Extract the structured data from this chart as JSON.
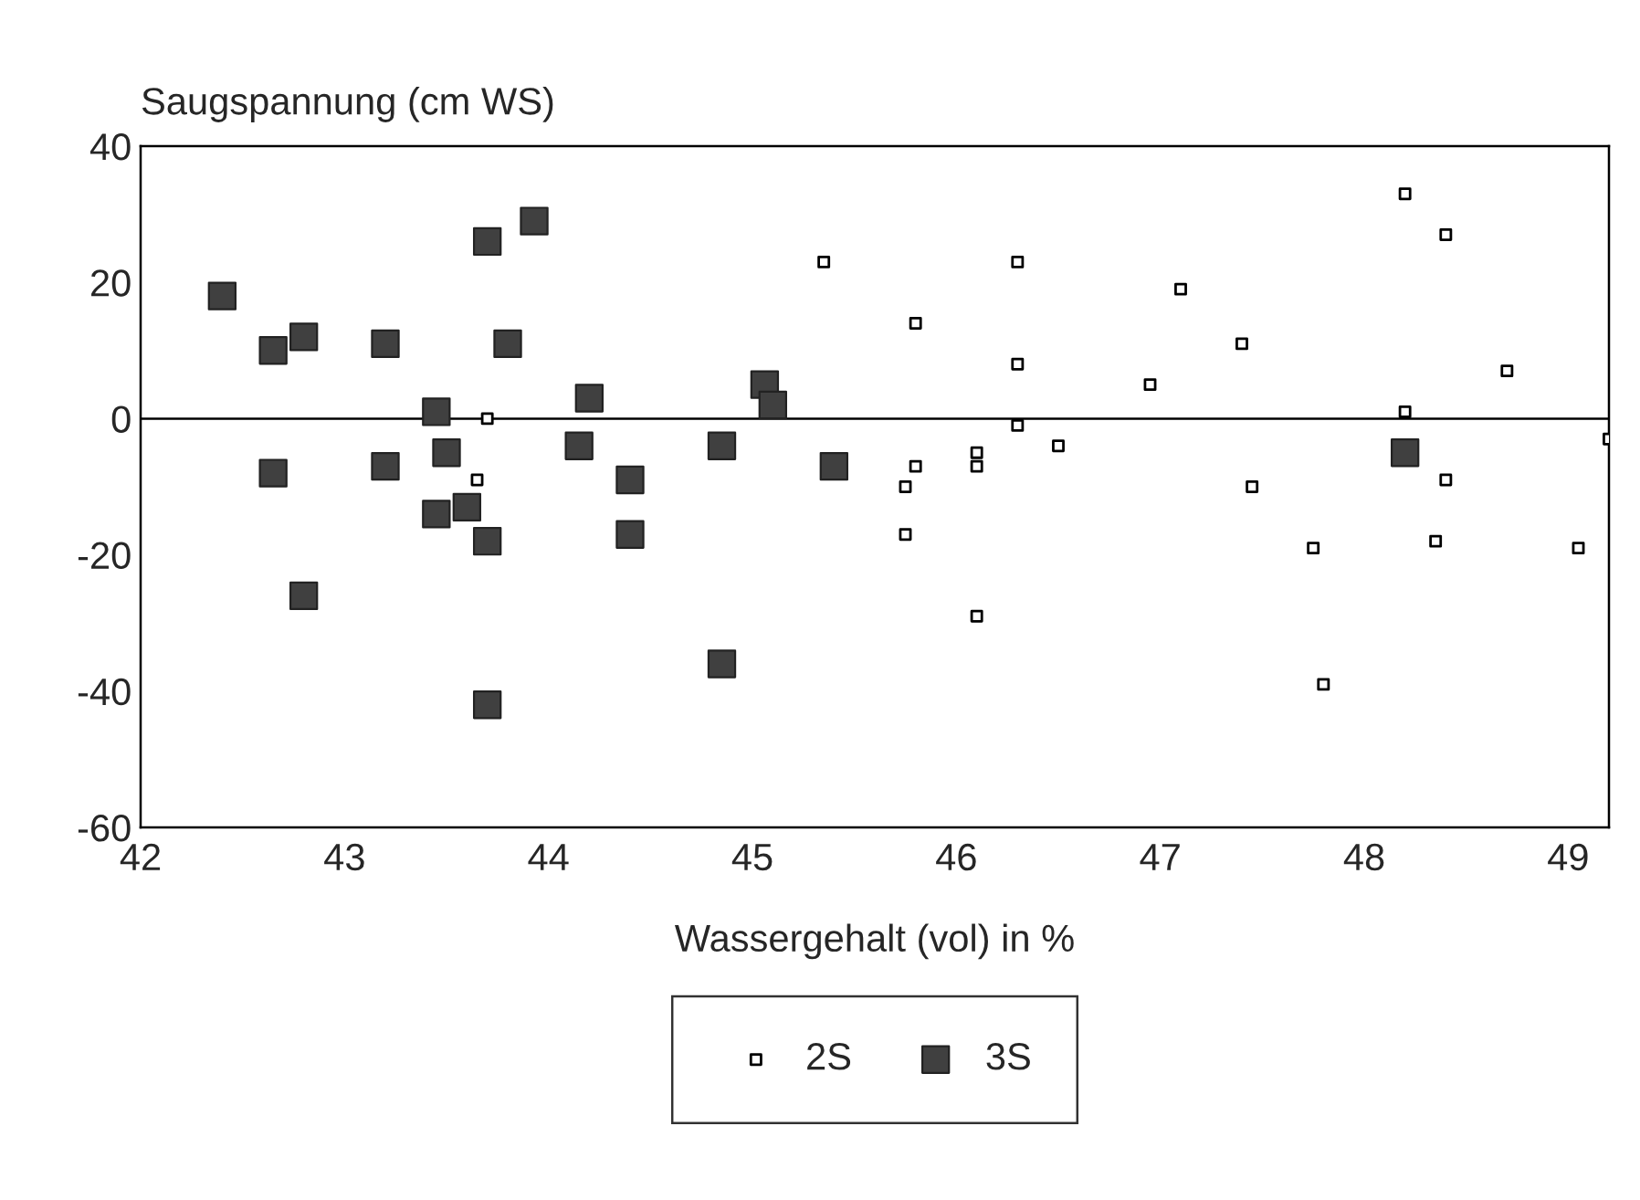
{
  "chart_data": {
    "type": "scatter",
    "xlabel": "Wassergehalt (vol) in %",
    "ylabel": "Saugspannung (cm WS)",
    "xlim": [
      42,
      49.2
    ],
    "xticks": [
      42,
      43,
      44,
      45,
      46,
      47,
      48,
      49
    ],
    "ylim": [
      -60,
      40
    ],
    "yticks": [
      -60,
      -40,
      -20,
      0,
      20,
      40
    ],
    "marker": "square",
    "legend": "bottom",
    "grid": false,
    "ref_lines": [
      {
        "axis": "y",
        "value": 0,
        "color": "#000000"
      }
    ],
    "series": [
      {
        "name": "2S",
        "color": "#000000",
        "x": [
          43.7,
          43.65,
          45.35,
          45.8,
          45.75,
          45.8,
          45.75,
          46.1,
          46.1,
          46.1,
          46.3,
          46.3,
          46.3,
          46.5,
          46.95,
          47.1,
          47.4,
          47.45,
          47.75,
          47.8,
          48.2,
          48.2,
          48.4,
          48.4,
          48.35,
          48.7,
          49.2,
          49.05
        ],
        "values": [
          0,
          -9,
          23,
          14,
          -10,
          -7,
          -17,
          -5,
          -7,
          -29,
          23,
          8,
          -1,
          -4,
          5,
          19,
          11,
          -10,
          -19,
          -39,
          33,
          1,
          27,
          -9,
          -18,
          7,
          -3,
          -19
        ]
      },
      {
        "name": "3S",
        "color": "#404040",
        "x": [
          42.4,
          42.65,
          42.65,
          42.8,
          42.8,
          43.2,
          43.2,
          43.45,
          43.45,
          43.5,
          43.6,
          43.7,
          43.7,
          43.7,
          43.93,
          43.8,
          44.15,
          44.2,
          44.4,
          44.4,
          44.85,
          44.85,
          45.06,
          45.1,
          45.4,
          48.2
        ],
        "values": [
          18,
          -8,
          10,
          12,
          -26,
          11,
          -7,
          1,
          -14,
          -5,
          -13,
          26,
          -18,
          -42,
          29,
          11,
          -4,
          3,
          -9,
          -17,
          -4,
          -36,
          5,
          2,
          -7,
          -5
        ]
      }
    ]
  }
}
